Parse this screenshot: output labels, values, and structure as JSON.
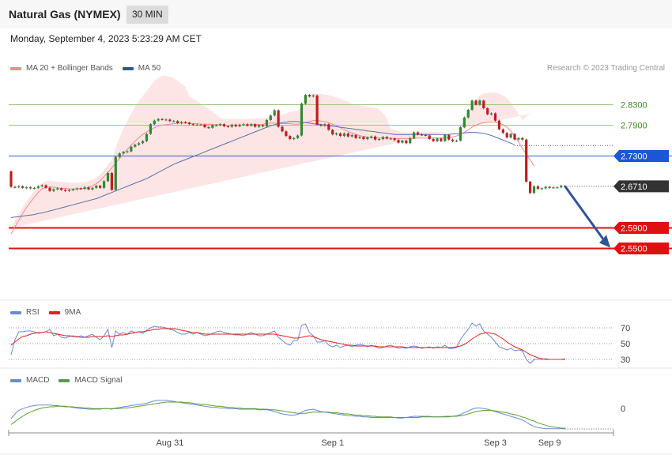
{
  "header": {
    "title": "Natural Gas (NYMEX)",
    "timeframe": "30 MIN",
    "datetime": "Monday, September 4, 2023 5:23:29 AM CET",
    "credit": "Research © 2023 Trading Central"
  },
  "legends": {
    "price": [
      {
        "label": "MA 20 + Bollinger Bands",
        "color": "#f08c8c"
      },
      {
        "label": "MA 50",
        "color": "#2f5597"
      }
    ],
    "rsi": [
      {
        "label": "RSI",
        "color": "#6a8ad8"
      },
      {
        "label": "9MA",
        "color": "#e02020"
      }
    ],
    "macd": [
      {
        "label": "MACD",
        "color": "#6a8ad8"
      },
      {
        "label": "MACD Signal",
        "color": "#5aa02c"
      }
    ]
  },
  "chart_data": [
    {
      "type": "candlestick",
      "price_range": [
        2.48,
        2.88
      ],
      "levels": [
        {
          "value": 2.83,
          "label": "2.8300",
          "kind": "green"
        },
        {
          "value": 2.79,
          "label": "2.7900",
          "kind": "green"
        },
        {
          "value": 2.73,
          "label": "2.7300",
          "kind": "blue"
        },
        {
          "value": 2.671,
          "label": "2.6710",
          "kind": "current"
        },
        {
          "value": 2.59,
          "label": "2.5900",
          "kind": "red"
        },
        {
          "value": 2.55,
          "label": "2.5500",
          "kind": "red"
        }
      ],
      "x_ticks": [
        {
          "label": "Aug 31",
          "index": 41
        },
        {
          "label": "Sep 1",
          "index": 83
        },
        {
          "label": "Sep 3",
          "index": 125
        },
        {
          "label": "Sep 9",
          "index": 139
        }
      ],
      "closes": [
        2.67,
        2.669,
        2.671,
        2.668,
        2.669,
        2.667,
        2.668,
        2.671,
        2.673,
        2.668,
        2.662,
        2.665,
        2.667,
        2.664,
        2.662,
        2.664,
        2.665,
        2.667,
        2.666,
        2.669,
        2.665,
        2.668,
        2.672,
        2.668,
        2.681,
        2.697,
        2.664,
        2.728,
        2.735,
        2.738,
        2.739,
        2.748,
        2.752,
        2.755,
        2.759,
        2.773,
        2.792,
        2.799,
        2.802,
        2.801,
        2.801,
        2.798,
        2.798,
        2.794,
        2.796,
        2.795,
        2.792,
        2.791,
        2.791,
        2.791,
        2.786,
        2.785,
        2.79,
        2.79,
        2.792,
        2.788,
        2.787,
        2.791,
        2.788,
        2.791,
        2.792,
        2.789,
        2.792,
        2.787,
        2.79,
        2.788,
        2.8,
        2.809,
        2.819,
        2.787,
        2.778,
        2.769,
        2.763,
        2.765,
        2.77,
        2.832,
        2.849,
        2.846,
        2.848,
        2.791,
        2.789,
        2.792,
        2.781,
        2.772,
        2.774,
        2.769,
        2.774,
        2.768,
        2.771,
        2.765,
        2.767,
        2.763,
        2.766,
        2.768,
        2.762,
        2.763,
        2.767,
        2.764,
        2.764,
        2.761,
        2.756,
        2.76,
        2.755,
        2.765,
        2.776,
        2.772,
        2.771,
        2.77,
        2.763,
        2.759,
        2.764,
        2.759,
        2.771,
        2.762,
        2.759,
        2.76,
        2.786,
        2.805,
        2.82,
        2.838,
        2.83,
        2.838,
        2.823,
        2.811,
        2.813,
        2.799,
        2.782,
        2.775,
        2.766,
        2.773,
        2.762,
        2.765,
        2.762,
        2.68,
        2.658,
        2.671,
        2.666,
        2.667,
        2.67,
        2.668,
        2.669,
        2.669,
        2.672,
        2.671
      ],
      "ma20": [
        2.578,
        2.592,
        2.605,
        2.618,
        2.63,
        2.64,
        2.65,
        2.659,
        2.666,
        2.669,
        2.67,
        2.669,
        2.668,
        2.667,
        2.667,
        2.666,
        2.666,
        2.666,
        2.667,
        2.667,
        2.669,
        2.672,
        2.676,
        2.682,
        2.69,
        2.698,
        2.707,
        2.716,
        2.725,
        2.734,
        2.743,
        2.751,
        2.759,
        2.766,
        2.772,
        2.777,
        2.781,
        2.785,
        2.788,
        2.79,
        2.791,
        2.792,
        2.793,
        2.794,
        2.794,
        2.794,
        2.794,
        2.793,
        2.793,
        2.792,
        2.792,
        2.792,
        2.791,
        2.791,
        2.791,
        2.79,
        2.79,
        2.79,
        2.79,
        2.79,
        2.79,
        2.79,
        2.791,
        2.791,
        2.791,
        2.792,
        2.793,
        2.794,
        2.794,
        2.793,
        2.793,
        2.793,
        2.793,
        2.792,
        2.792,
        2.793,
        2.795,
        2.797,
        2.799,
        2.799,
        2.798,
        2.797,
        2.795,
        2.792,
        2.789,
        2.785,
        2.781,
        2.778,
        2.775,
        2.772,
        2.77,
        2.768,
        2.767,
        2.766,
        2.765,
        2.765,
        2.765,
        2.765,
        2.765,
        2.764,
        2.764,
        2.764,
        2.764,
        2.764,
        2.764,
        2.765,
        2.765,
        2.765,
        2.765,
        2.765,
        2.765,
        2.765,
        2.765,
        2.766,
        2.767,
        2.769,
        2.772,
        2.776,
        2.781,
        2.786,
        2.79,
        2.793,
        2.795,
        2.796,
        2.796,
        2.796,
        2.794,
        2.791,
        2.786,
        2.779,
        2.768,
        2.757,
        2.745,
        2.733,
        2.722,
        2.711
      ],
      "ma50": [
        2.61,
        2.611,
        2.612,
        2.613,
        2.614,
        2.615,
        2.616,
        2.618,
        2.619,
        2.621,
        2.623,
        2.625,
        2.627,
        2.629,
        2.631,
        2.633,
        2.635,
        2.637,
        2.639,
        2.641,
        2.643,
        2.645,
        2.647,
        2.65,
        2.653,
        2.656,
        2.659,
        2.662,
        2.665,
        2.668,
        2.671,
        2.674,
        2.677,
        2.68,
        2.683,
        2.686,
        2.69,
        2.694,
        2.698,
        2.702,
        2.706,
        2.71,
        2.714,
        2.717,
        2.72,
        2.723,
        2.726,
        2.729,
        2.732,
        2.735,
        2.738,
        2.741,
        2.744,
        2.747,
        2.75,
        2.753,
        2.756,
        2.759,
        2.762,
        2.765,
        2.768,
        2.771,
        2.774,
        2.777,
        2.78,
        2.783,
        2.786,
        2.789,
        2.791,
        2.793,
        2.795,
        2.796,
        2.797,
        2.797,
        2.797,
        2.796,
        2.795,
        2.794,
        2.793,
        2.792,
        2.791,
        2.79,
        2.789,
        2.788,
        2.787,
        2.786,
        2.785,
        2.784,
        2.783,
        2.782,
        2.781,
        2.78,
        2.779,
        2.778,
        2.777,
        2.776,
        2.775,
        2.774,
        2.773,
        2.772,
        2.772,
        2.772,
        2.772,
        2.772,
        2.772,
        2.772,
        2.772,
        2.772,
        2.772,
        2.772,
        2.772,
        2.772,
        2.772,
        2.772,
        2.773,
        2.773,
        2.774,
        2.775,
        2.776,
        2.776,
        2.776,
        2.775,
        2.774,
        2.772,
        2.77,
        2.767,
        2.764,
        2.761,
        2.758,
        2.755,
        2.752
      ],
      "projection": {
        "from_price": 2.671,
        "to_price": 2.55
      }
    },
    {
      "type": "line",
      "name": "RSI",
      "levels": [
        70,
        50,
        30
      ],
      "y_range": [
        20,
        80
      ],
      "rsi": [
        36,
        55,
        65,
        65,
        66,
        66,
        65,
        63,
        64,
        65,
        68,
        60,
        62,
        58,
        57,
        59,
        60,
        58,
        60,
        58,
        60,
        62,
        58,
        55,
        60,
        68,
        45,
        66,
        62,
        64,
        62,
        66,
        64,
        65,
        63,
        67,
        70,
        72,
        71,
        71,
        70,
        68,
        67,
        64,
        62,
        62,
        64,
        62,
        64,
        62,
        60,
        61,
        63,
        65,
        66,
        64,
        63,
        62,
        61,
        61,
        60,
        62,
        64,
        62,
        60,
        60,
        62,
        64,
        66,
        58,
        54,
        50,
        48,
        54,
        54,
        73,
        75,
        64,
        60,
        52,
        52,
        54,
        48,
        46,
        48,
        45,
        47,
        48,
        46,
        48,
        49,
        48,
        46,
        48,
        46,
        44,
        45,
        47,
        48,
        46,
        44,
        45,
        44,
        46,
        47,
        46,
        44,
        45,
        46,
        44,
        46,
        45,
        48,
        44,
        44,
        45,
        55,
        62,
        68,
        76,
        72,
        75,
        66,
        62,
        58,
        52,
        46,
        44,
        42,
        44,
        41,
        42,
        41,
        30,
        25,
        30,
        30,
        30,
        31,
        30,
        30,
        30,
        30,
        31
      ],
      "ma9": [
        48,
        52,
        56,
        59,
        60,
        62,
        63,
        64,
        64,
        65,
        64,
        63,
        62,
        61,
        60,
        60,
        59,
        59,
        58,
        58,
        58,
        59,
        59,
        59,
        59,
        60,
        59,
        60,
        61,
        61,
        62,
        63,
        64,
        65,
        65,
        66,
        67,
        68,
        68,
        69,
        69,
        69,
        69,
        68,
        67,
        66,
        65,
        64,
        64,
        63,
        62,
        62,
        62,
        62,
        62,
        62,
        62,
        62,
        62,
        62,
        62,
        62,
        62,
        62,
        62,
        62,
        62,
        62,
        62,
        61,
        60,
        59,
        58,
        57,
        57,
        58,
        59,
        60,
        59,
        57,
        55,
        54,
        53,
        52,
        51,
        50,
        49,
        48,
        48,
        47,
        47,
        47,
        47,
        47,
        47,
        46,
        46,
        46,
        46,
        46,
        46,
        46,
        45,
        45,
        45,
        45,
        45,
        45,
        45,
        45,
        45,
        45,
        45,
        45,
        45,
        46,
        47,
        49,
        52,
        56,
        59,
        62,
        63,
        64,
        63,
        62,
        59,
        56,
        52,
        49,
        46,
        44,
        42,
        39,
        36,
        34,
        32,
        31,
        30,
        30,
        30,
        30,
        30,
        30
      ]
    },
    {
      "type": "line",
      "name": "MACD",
      "levels": [
        0
      ],
      "macd": [
        -0.02,
        -0.012,
        -0.006,
        -0.003,
        -0.001,
        0.001,
        0.002,
        0.003,
        0.003,
        0.003,
        0.003,
        0.002,
        0.002,
        0.001,
        0.0,
        0.0,
        -0.001,
        -0.002,
        -0.003,
        -0.003,
        -0.004,
        -0.004,
        -0.004,
        -0.004,
        -0.003,
        -0.003,
        -0.004,
        -0.002,
        -0.001,
        0.0,
        0.001,
        0.002,
        0.003,
        0.004,
        0.005,
        0.006,
        0.008,
        0.01,
        0.011,
        0.011,
        0.011,
        0.01,
        0.009,
        0.008,
        0.007,
        0.006,
        0.005,
        0.004,
        0.003,
        0.002,
        0.001,
        0.0,
        -0.001,
        -0.001,
        -0.002,
        -0.002,
        -0.003,
        -0.003,
        -0.003,
        -0.004,
        -0.004,
        -0.004,
        -0.004,
        -0.004,
        -0.005,
        -0.005,
        -0.005,
        -0.006,
        -0.008,
        -0.01,
        -0.012,
        -0.013,
        -0.014,
        -0.014,
        -0.013,
        -0.009,
        -0.006,
        -0.005,
        -0.004,
        -0.006,
        -0.008,
        -0.009,
        -0.01,
        -0.011,
        -0.012,
        -0.013,
        -0.014,
        -0.015,
        -0.015,
        -0.016,
        -0.016,
        -0.017,
        -0.017,
        -0.018,
        -0.018,
        -0.018,
        -0.018,
        -0.018,
        -0.018,
        -0.018,
        -0.019,
        -0.019,
        -0.018,
        -0.017,
        -0.016,
        -0.016,
        -0.016,
        -0.016,
        -0.016,
        -0.017,
        -0.017,
        -0.017,
        -0.016,
        -0.016,
        -0.016,
        -0.015,
        -0.013,
        -0.01,
        -0.007,
        -0.004,
        -0.002,
        -0.002,
        -0.003,
        -0.004,
        -0.006,
        -0.008,
        -0.01,
        -0.012,
        -0.014,
        -0.016,
        -0.018,
        -0.02,
        -0.022,
        -0.026,
        -0.03,
        -0.033,
        -0.035,
        -0.036,
        -0.037,
        -0.037,
        -0.037,
        -0.037,
        -0.037,
        -0.037
      ],
      "signal": [
        -0.03,
        -0.025,
        -0.02,
        -0.016,
        -0.012,
        -0.009,
        -0.006,
        -0.004,
        -0.002,
        -0.001,
        0.0,
        0.0,
        0.001,
        0.001,
        0.001,
        0.0,
        0.0,
        -0.001,
        -0.001,
        -0.002,
        -0.002,
        -0.003,
        -0.003,
        -0.003,
        -0.003,
        -0.003,
        -0.003,
        -0.003,
        -0.003,
        -0.002,
        -0.002,
        -0.001,
        0.0,
        0.001,
        0.002,
        0.003,
        0.004,
        0.005,
        0.006,
        0.007,
        0.008,
        0.008,
        0.008,
        0.008,
        0.008,
        0.007,
        0.007,
        0.006,
        0.005,
        0.004,
        0.004,
        0.003,
        0.002,
        0.001,
        0.001,
        0.0,
        -0.001,
        -0.001,
        -0.002,
        -0.002,
        -0.003,
        -0.003,
        -0.003,
        -0.003,
        -0.004,
        -0.004,
        -0.004,
        -0.005,
        -0.005,
        -0.006,
        -0.007,
        -0.008,
        -0.009,
        -0.01,
        -0.011,
        -0.011,
        -0.011,
        -0.01,
        -0.009,
        -0.009,
        -0.009,
        -0.009,
        -0.009,
        -0.01,
        -0.01,
        -0.011,
        -0.012,
        -0.012,
        -0.013,
        -0.014,
        -0.014,
        -0.015,
        -0.015,
        -0.016,
        -0.016,
        -0.017,
        -0.017,
        -0.017,
        -0.017,
        -0.018,
        -0.018,
        -0.018,
        -0.018,
        -0.018,
        -0.018,
        -0.018,
        -0.017,
        -0.017,
        -0.017,
        -0.017,
        -0.017,
        -0.017,
        -0.017,
        -0.017,
        -0.016,
        -0.016,
        -0.015,
        -0.014,
        -0.012,
        -0.01,
        -0.008,
        -0.007,
        -0.006,
        -0.006,
        -0.006,
        -0.007,
        -0.008,
        -0.009,
        -0.01,
        -0.012,
        -0.013,
        -0.015,
        -0.017,
        -0.019,
        -0.022,
        -0.024,
        -0.027,
        -0.029,
        -0.031,
        -0.033,
        -0.034,
        -0.035,
        -0.036,
        -0.036
      ]
    }
  ]
}
